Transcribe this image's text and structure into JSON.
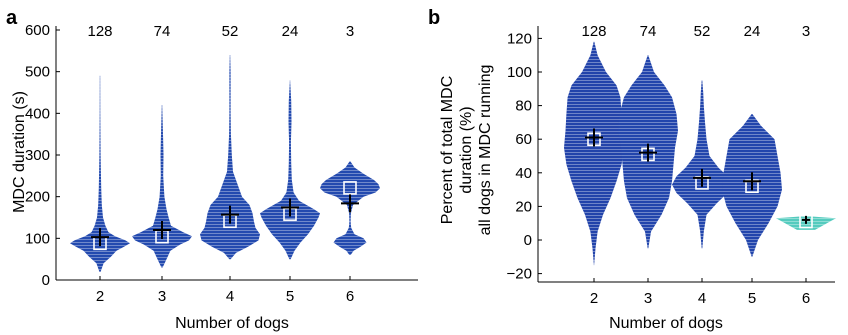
{
  "colors": {
    "ramp": [
      "#2140a8",
      "#2f7fd6",
      "#3cc4e0",
      "#78d68c",
      "#e8e83a",
      "#f5a623",
      "#e8501e",
      "#b0161e",
      "#6e1414"
    ],
    "axis": "#000000"
  },
  "chart_data": [
    {
      "panel_label": "a",
      "type": "violin",
      "xlabel": "Number of dogs",
      "ylabel": "MDC duration (s)",
      "categories": [
        "2",
        "3",
        "4",
        "5",
        "6"
      ],
      "counts": [
        "128",
        "74",
        "52",
        "24",
        "3"
      ],
      "ylim": [
        0,
        600
      ],
      "yticks": [
        0,
        100,
        200,
        300,
        400,
        500,
        600
      ],
      "ytick_labels": [
        "0",
        "100",
        "200",
        "300",
        "400",
        "500",
        "600"
      ],
      "xtick_labels": [
        "2",
        "3",
        "4",
        "5",
        "6"
      ],
      "mean": [
        103,
        120,
        157,
        174,
        184
      ],
      "median": [
        88,
        104,
        141,
        158,
        221
      ],
      "violins": [
        {
          "y": [
            20,
            40,
            55,
            70,
            80,
            88,
            95,
            105,
            115,
            130,
            150,
            180,
            220,
            300,
            400,
            490
          ],
          "w": [
            0.02,
            0.12,
            0.35,
            0.55,
            0.8,
            1.0,
            0.85,
            0.5,
            0.28,
            0.18,
            0.1,
            0.06,
            0.04,
            0.02,
            0.01,
            0.005
          ]
        },
        {
          "y": [
            30,
            50,
            70,
            85,
            95,
            105,
            115,
            130,
            150,
            170,
            200,
            250,
            300,
            360,
            420
          ],
          "w": [
            0.02,
            0.15,
            0.28,
            0.6,
            0.9,
            1.0,
            0.7,
            0.3,
            0.22,
            0.15,
            0.08,
            0.04,
            0.05,
            0.03,
            0.005
          ]
        },
        {
          "y": [
            50,
            65,
            80,
            95,
            110,
            125,
            140,
            160,
            180,
            200,
            230,
            260,
            300,
            350,
            400,
            450,
            500,
            540
          ],
          "w": [
            0.02,
            0.2,
            0.6,
            0.95,
            1.0,
            0.85,
            0.8,
            0.75,
            0.65,
            0.4,
            0.25,
            0.1,
            0.06,
            0.03,
            0.02,
            0.02,
            0.02,
            0.005
          ]
        },
        {
          "y": [
            50,
            70,
            90,
            110,
            130,
            150,
            160,
            170,
            190,
            210,
            240,
            280,
            330,
            380,
            430,
            480
          ],
          "w": [
            0.02,
            0.15,
            0.35,
            0.6,
            0.8,
            0.95,
            1.0,
            0.8,
            0.3,
            0.12,
            0.06,
            0.04,
            0.03,
            0.05,
            0.04,
            0.005
          ]
        },
        {
          "y": [
            60,
            70,
            80,
            90,
            100,
            110,
            125,
            140,
            160,
            180,
            200,
            210,
            220,
            230,
            240,
            255,
            270,
            285
          ],
          "w": [
            0.02,
            0.12,
            0.35,
            0.55,
            0.45,
            0.15,
            0.04,
            0.02,
            0.03,
            0.1,
            0.45,
            0.85,
            1.0,
            0.95,
            0.8,
            0.45,
            0.15,
            0.01
          ]
        }
      ]
    },
    {
      "panel_label": "b",
      "type": "violin",
      "xlabel": "Number of dogs",
      "ylabel_lines": [
        "Percent of total MDC",
        "duration (%)",
        "all dogs in MDC running"
      ],
      "categories": [
        "2",
        "3",
        "4",
        "5",
        "6"
      ],
      "counts": [
        "128",
        "74",
        "52",
        "24",
        "3"
      ],
      "ylim": [
        -25,
        125
      ],
      "yticks": [
        -20,
        0,
        20,
        40,
        60,
        80,
        100,
        120
      ],
      "ytick_labels": [
        "−20",
        "0",
        "20",
        "40",
        "60",
        "80",
        "100",
        "120"
      ],
      "xtick_labels": [
        "2",
        "3",
        "4",
        "5",
        "6"
      ],
      "mean": [
        61,
        52,
        37,
        35,
        12
      ],
      "median": [
        60,
        51,
        34,
        32,
        11
      ],
      "violins": [
        {
          "y": [
            -15,
            -5,
            5,
            15,
            25,
            35,
            45,
            55,
            65,
            75,
            85,
            92,
            100,
            110,
            118
          ],
          "w": [
            0.005,
            0.05,
            0.12,
            0.3,
            0.55,
            0.75,
            0.92,
            1.0,
            0.95,
            0.92,
            0.88,
            0.75,
            0.4,
            0.12,
            0.01
          ]
        },
        {
          "y": [
            -5,
            5,
            15,
            25,
            35,
            45,
            55,
            65,
            75,
            85,
            92,
            100,
            110
          ],
          "w": [
            0.01,
            0.1,
            0.45,
            0.7,
            0.8,
            0.85,
            0.9,
            1.0,
            0.95,
            0.8,
            0.55,
            0.2,
            0.01
          ]
        },
        {
          "y": [
            -5,
            5,
            15,
            22,
            28,
            33,
            38,
            43,
            50,
            60,
            70,
            80,
            88,
            95
          ],
          "w": [
            0.01,
            0.06,
            0.15,
            0.5,
            0.85,
            1.0,
            0.85,
            0.55,
            0.25,
            0.15,
            0.1,
            0.06,
            0.04,
            0.01
          ]
        },
        {
          "y": [
            -10,
            0,
            10,
            20,
            30,
            40,
            50,
            60,
            68,
            75
          ],
          "w": [
            0.01,
            0.2,
            0.55,
            0.85,
            1.0,
            0.95,
            0.85,
            0.75,
            0.3,
            0.01
          ]
        },
        {
          "y": [
            6,
            9,
            11,
            13,
            14
          ],
          "w": [
            0.3,
            0.6,
            0.8,
            1.0,
            0.2
          ]
        }
      ]
    }
  ]
}
